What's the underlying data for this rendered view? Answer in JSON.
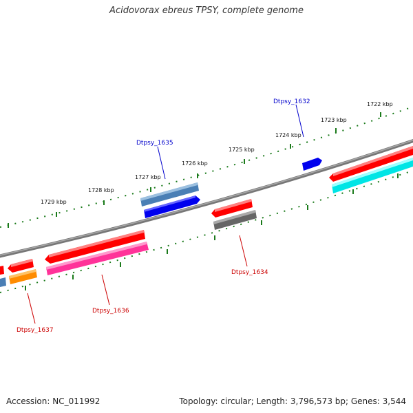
{
  "title": "Acidovorax ebreus TPSY, complete genome",
  "accession": "Accession: NC_011992",
  "topology": "Topology: circular; Length: 3,796,573 bp; Genes: 3,544",
  "scale_labels": [
    "1722 kbp",
    "1723 kbp",
    "1724 kbp",
    "1725 kbp",
    "1726 kbp",
    "1727 kbp",
    "1728 kbp",
    "1729 kbp"
  ],
  "gene_labels": {
    "dtpsy_1632": "Dtpsy_1632",
    "dtpsy_1635": "Dtpsy_1635",
    "dtpsy_1634": "Dtpsy_1634",
    "dtpsy_1636": "Dtpsy_1636",
    "dtpsy_1637": "Dtpsy_1637"
  },
  "colors": {
    "backbone": "#888888",
    "ticks": "#1a7a1a",
    "label_blue": "#0000cc",
    "label_red": "#cc0000",
    "red": "#ff0000",
    "blue": "#0000ee",
    "steelblue": "#4a7fb5",
    "cyan": "#00e5e5",
    "pink": "#ff3399",
    "orange": "#ff8c00",
    "gray": "#666666"
  }
}
